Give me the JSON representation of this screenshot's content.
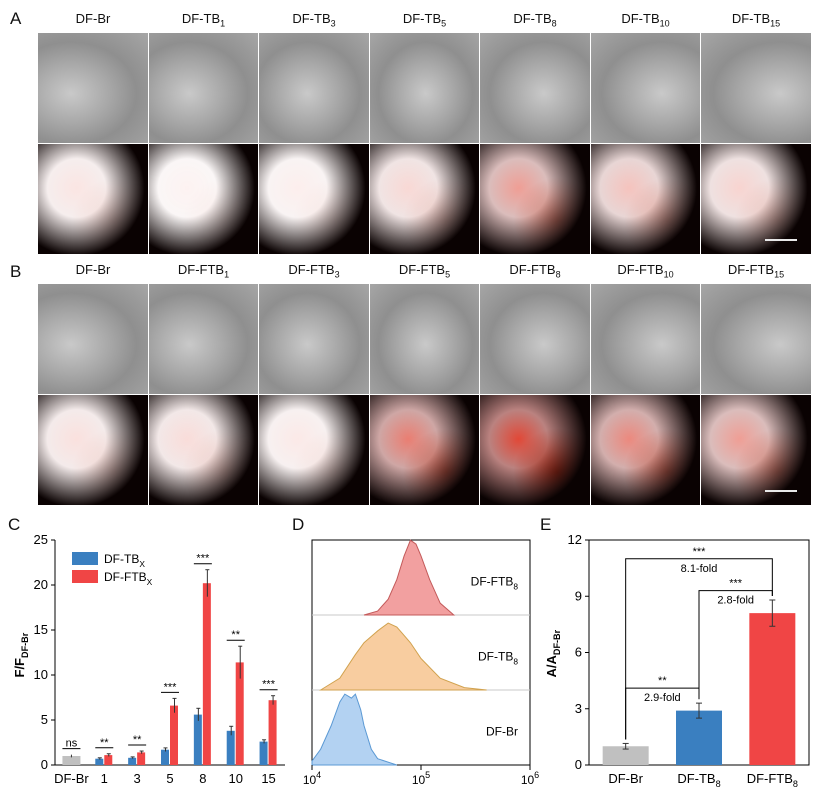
{
  "panel_letters": {
    "a": "A",
    "b": "B",
    "c": "C",
    "d": "D",
    "e": "E"
  },
  "imaging": {
    "A": {
      "columns": [
        {
          "base": "DF-Br",
          "sub": ""
        },
        {
          "base": "DF-TB",
          "sub": "1"
        },
        {
          "base": "DF-TB",
          "sub": "3"
        },
        {
          "base": "DF-TB",
          "sub": "5"
        },
        {
          "base": "DF-TB",
          "sub": "8"
        },
        {
          "base": "DF-TB",
          "sub": "10"
        },
        {
          "base": "DF-TB",
          "sub": "15"
        }
      ],
      "red_intensity": [
        0.12,
        0.06,
        0.08,
        0.18,
        0.45,
        0.28,
        0.2
      ]
    },
    "B": {
      "columns": [
        {
          "base": "DF-Br",
          "sub": ""
        },
        {
          "base": "DF-FTB",
          "sub": "1"
        },
        {
          "base": "DF-FTB",
          "sub": "3"
        },
        {
          "base": "DF-FTB",
          "sub": "5"
        },
        {
          "base": "DF-FTB",
          "sub": "8"
        },
        {
          "base": "DF-FTB",
          "sub": "10"
        },
        {
          "base": "DF-FTB",
          "sub": "15"
        }
      ],
      "red_intensity": [
        0.14,
        0.16,
        0.1,
        0.6,
        0.85,
        0.55,
        0.45
      ]
    }
  },
  "chart_data": [
    {
      "panel": "C",
      "type": "bar",
      "ylabel": "F/F",
      "ylabel_sub": "DF-Br",
      "categories": [
        "DF-Br",
        "1",
        "3",
        "5",
        "8",
        "10",
        "15"
      ],
      "ylim": [
        0,
        25
      ],
      "yticks": [
        "0",
        "5",
        "10",
        "15",
        "20",
        "25"
      ],
      "control": {
        "value": 1.0,
        "error": 0.15,
        "color": "#c0c0c0"
      },
      "series": [
        {
          "name": "DF-TB",
          "sub": "X",
          "color": "#3a7fc0",
          "values": [
            null,
            0.7,
            0.8,
            1.7,
            5.6,
            3.8,
            2.6
          ],
          "errors": [
            null,
            0.1,
            0.1,
            0.2,
            0.7,
            0.5,
            0.2
          ]
        },
        {
          "name": "DF-FTB",
          "sub": "X",
          "color": "#f04545",
          "values": [
            null,
            1.1,
            1.4,
            6.6,
            20.2,
            11.4,
            7.2
          ],
          "errors": [
            null,
            0.15,
            0.15,
            0.8,
            1.5,
            1.8,
            0.5
          ]
        }
      ],
      "significance": [
        "ns",
        "**",
        "**",
        "***",
        "***",
        "**",
        "***"
      ]
    },
    {
      "panel": "D",
      "type": "area",
      "xscale": "log",
      "xlim": [
        10000,
        1000000
      ],
      "xticks": [
        {
          "base": "10",
          "exp": "4"
        },
        {
          "base": "10",
          "exp": "5"
        },
        {
          "base": "10",
          "exp": "6"
        }
      ],
      "series": [
        {
          "name": "DF-FTB",
          "sub": "8",
          "color": "#f08f8f",
          "stroke": "#c35a5a",
          "x": [
            30000,
            40000,
            50000,
            60000,
            70000,
            80000,
            90000,
            100000,
            120000,
            150000,
            200000
          ],
          "y": [
            0.0,
            0.05,
            0.2,
            0.45,
            0.75,
            0.95,
            0.9,
            0.75,
            0.45,
            0.15,
            0.0
          ]
        },
        {
          "name": "DF-TB",
          "sub": "8",
          "color": "#f7c48f",
          "stroke": "#d1a24f",
          "x": [
            12000,
            18000,
            25000,
            30000,
            40000,
            50000,
            60000,
            80000,
            100000,
            150000,
            250000,
            400000
          ],
          "y": [
            0.0,
            0.15,
            0.45,
            0.6,
            0.75,
            0.85,
            0.8,
            0.6,
            0.4,
            0.15,
            0.03,
            0.0
          ]
        },
        {
          "name": "DF-Br",
          "sub": "",
          "color": "#a6caf0",
          "stroke": "#5b99d4",
          "x": [
            10000,
            12000,
            15000,
            18000,
            20000,
            23000,
            25000,
            28000,
            30000,
            35000,
            40000,
            60000
          ],
          "y": [
            0.05,
            0.2,
            0.5,
            0.8,
            0.9,
            0.85,
            0.9,
            0.7,
            0.5,
            0.2,
            0.08,
            0.0
          ]
        }
      ]
    },
    {
      "panel": "E",
      "type": "bar",
      "ylabel": "A/A",
      "ylabel_sub": "DF-Br",
      "categories": [
        {
          "base": "DF-Br",
          "sub": ""
        },
        {
          "base": "DF-TB",
          "sub": "8"
        },
        {
          "base": "DF-FTB",
          "sub": "8"
        }
      ],
      "values": [
        1.0,
        2.9,
        8.1
      ],
      "errors": [
        0.15,
        0.4,
        0.7
      ],
      "colors": [
        "#c0c0c0",
        "#3a7fc0",
        "#f04545"
      ],
      "ylim": [
        0,
        12
      ],
      "yticks": [
        "0",
        "3",
        "6",
        "9",
        "12"
      ],
      "brackets": [
        {
          "from": 0,
          "to": 1,
          "stars": "**",
          "label": "2.9-fold",
          "level": 4.1
        },
        {
          "from": 1,
          "to": 2,
          "stars": "***",
          "label": "2.8-fold",
          "level": 9.3
        },
        {
          "from": 0,
          "to": 2,
          "stars": "***",
          "label": "8.1-fold",
          "level": 11.0
        }
      ]
    }
  ]
}
